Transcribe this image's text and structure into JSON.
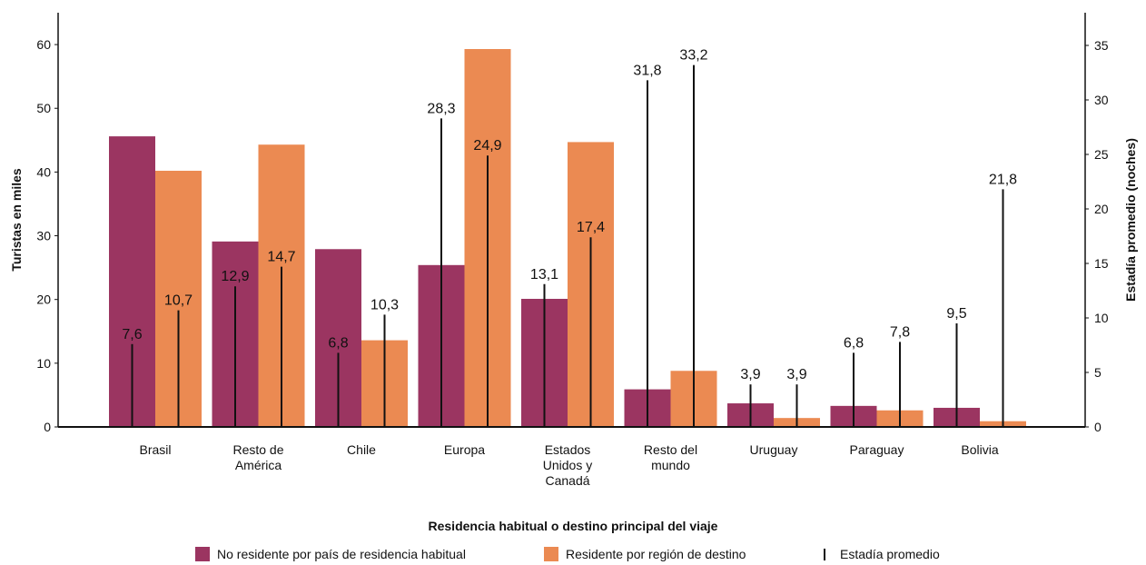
{
  "chart_data": {
    "type": "bar",
    "categories": [
      [
        "Brasil"
      ],
      [
        "Resto de",
        "América"
      ],
      [
        "Chile"
      ],
      [
        "Europa"
      ],
      [
        "Estados",
        "Unidos y",
        "Canadá"
      ],
      [
        "Resto del",
        "mundo"
      ],
      [
        "Uruguay"
      ],
      [
        "Paraguay"
      ],
      [
        "Bolivia"
      ]
    ],
    "series": [
      {
        "name": "No residente por país de residencia habitual",
        "color": "#9b3561",
        "values": [
          45.6,
          29.1,
          27.9,
          25.4,
          20.1,
          5.9,
          3.7,
          3.3,
          3.0
        ]
      },
      {
        "name": "Residente por región de destino",
        "color": "#eb8a52",
        "values": [
          40.2,
          44.3,
          13.6,
          59.3,
          44.7,
          8.8,
          1.4,
          2.6,
          0.9
        ]
      }
    ],
    "stay": {
      "name": "Estadía promedio",
      "no_residente": [
        7.6,
        12.9,
        6.8,
        28.3,
        13.1,
        31.8,
        3.9,
        6.8,
        9.5
      ],
      "residente": [
        10.7,
        14.7,
        10.3,
        24.9,
        17.4,
        33.2,
        3.9,
        7.8,
        21.8
      ],
      "labels_no_residente": [
        "7,6",
        "12,9",
        "6,8",
        "28,3",
        "13,1",
        "31,8",
        "3,9",
        "6,8",
        "9,5"
      ],
      "labels_residente": [
        "10,7",
        "14,7",
        "10,3",
        "24,9",
        "17,4",
        "33,2",
        "3,9",
        "7,8",
        "21,8"
      ]
    },
    "ylabel": "Turistas en miles",
    "ylim": [
      0,
      65
    ],
    "yticks": [
      0,
      10,
      20,
      30,
      40,
      50,
      60
    ],
    "y2label": "Estadía promedio (noches)",
    "y2lim": [
      0,
      38
    ],
    "y2ticks": [
      0,
      5,
      10,
      15,
      20,
      25,
      30,
      35
    ],
    "xlabel": "Residencia habitual o destino principal del viaje",
    "legend_position": "bottom",
    "grid": false
  }
}
